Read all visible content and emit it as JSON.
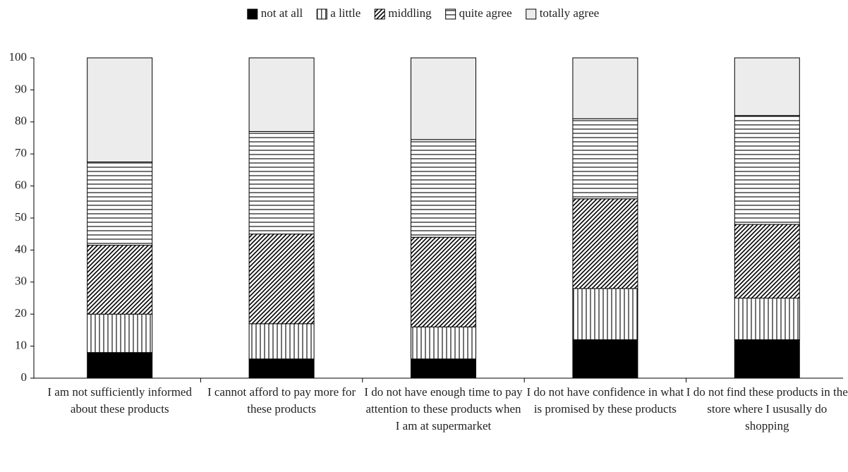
{
  "chart_data": {
    "type": "stacked_bar",
    "categories": [
      "I am not sufficiently informed about these products",
      "I cannot afford to pay more for these products",
      "I do not have enough time to pay attention to these products when I am at supermarket",
      "I do not have confidence in what is promised by these products",
      "I do not find these products in the store where I ususally do shopping"
    ],
    "series": [
      {
        "name": "not at all",
        "color": "#000000",
        "hatch": "solid",
        "values": [
          8,
          6,
          6,
          12,
          12
        ]
      },
      {
        "name": "a little",
        "color": "#ffffff",
        "hatch": "vertical",
        "values": [
          12,
          11,
          10,
          16,
          13
        ]
      },
      {
        "name": "middling",
        "color": "#ffffff",
        "hatch": "diagonal",
        "values": [
          21.5,
          28,
          28,
          28,
          23
        ]
      },
      {
        "name": "quite agree",
        "color": "#ffffff",
        "hatch": "horizontal",
        "values": [
          26,
          32,
          30.5,
          25,
          34
        ]
      },
      {
        "name": "totally agree",
        "color": "#ececec",
        "hatch": "solid",
        "values": [
          32.5,
          23,
          25.5,
          19,
          18
        ]
      }
    ],
    "ylim": [
      0,
      100
    ],
    "yticks": [
      0,
      10,
      20,
      30,
      40,
      50,
      60,
      70,
      80,
      90,
      100
    ],
    "grid": false
  }
}
